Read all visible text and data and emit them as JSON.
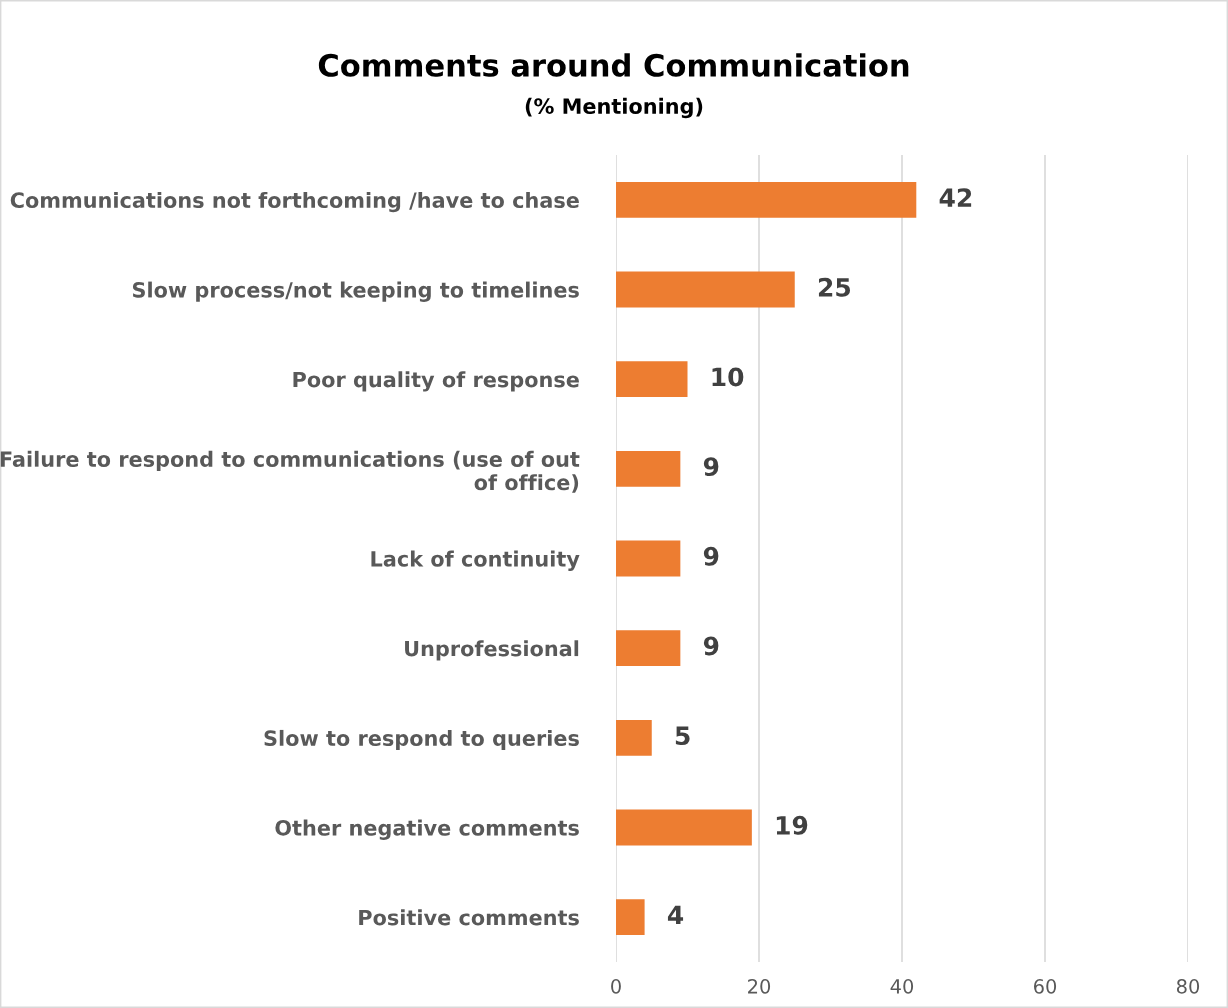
{
  "chart_data": {
    "type": "bar",
    "orientation": "horizontal",
    "title": "Comments around Communication",
    "subtitle": "(% Mentioning)",
    "categories": [
      "Communications not forthcoming /have to chase",
      "Slow process/not keeping to timelines",
      "Poor quality of response",
      "Failure to respond to communications (use of out\nof office)",
      "Lack of continuity",
      "Unprofessional",
      "Slow to respond to queries",
      "Other negative comments",
      "Positive comments"
    ],
    "values": [
      42,
      25,
      10,
      9,
      9,
      9,
      5,
      19,
      4
    ],
    "color": "#ed7d31",
    "xlim": [
      0,
      80
    ],
    "xticks": [
      0,
      20,
      40,
      60,
      80
    ],
    "grid": "x",
    "data_labels": true
  }
}
